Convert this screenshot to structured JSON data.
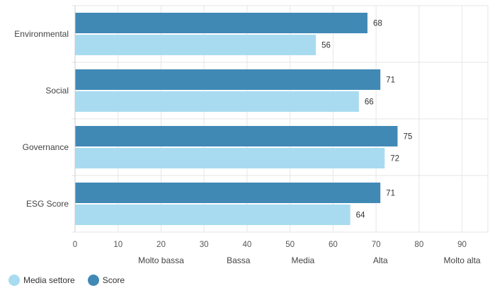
{
  "chart_data": {
    "type": "bar",
    "orientation": "horizontal",
    "categories": [
      "Environmental",
      "Social",
      "Governance",
      "ESG Score"
    ],
    "series": [
      {
        "name": "Score",
        "values": [
          68,
          71,
          75,
          71
        ],
        "color": "#4189b5"
      },
      {
        "name": "Media settore",
        "values": [
          56,
          66,
          72,
          64
        ],
        "color": "#a8dbf0"
      }
    ],
    "xlim": [
      0,
      96
    ],
    "xticks": [
      0,
      10,
      20,
      30,
      40,
      50,
      60,
      70,
      80,
      90
    ],
    "band_labels": [
      {
        "value": 20,
        "label": "Molto bassa"
      },
      {
        "value": 38,
        "label": "Bassa"
      },
      {
        "value": 53,
        "label": "Media"
      },
      {
        "value": 71,
        "label": "Alta"
      },
      {
        "value": 90,
        "label": "Molto alta"
      }
    ],
    "grid": true,
    "legend": {
      "placement": "bottom-left",
      "order": [
        "Media settore",
        "Score"
      ]
    },
    "title": "",
    "xlabel": "",
    "ylabel": ""
  }
}
